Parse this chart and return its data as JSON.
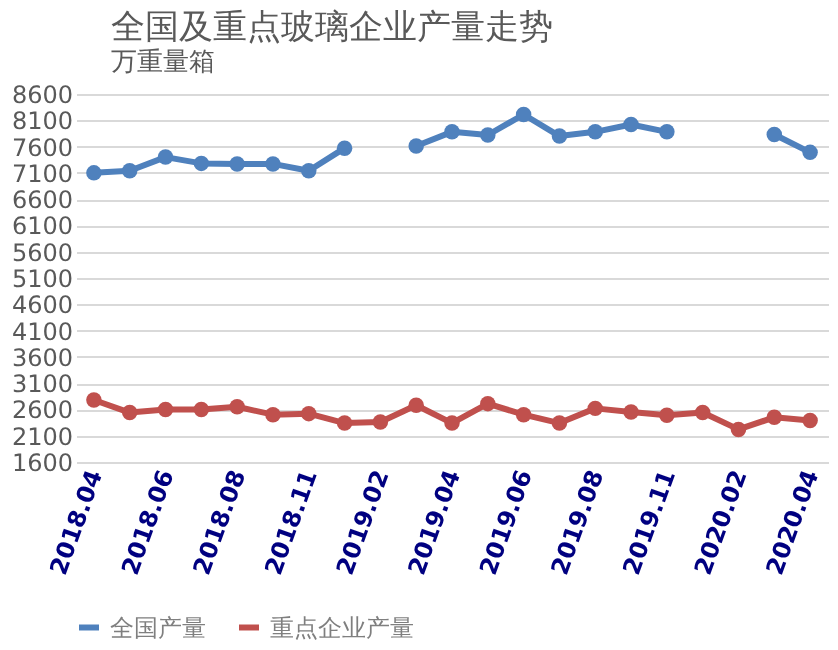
{
  "chart_data": {
    "type": "line",
    "title": "全国及重点玻璃企业产量走势",
    "ylabel": "万重量箱",
    "categories": [
      "2018.04",
      null,
      "2018.06",
      null,
      "2018.08",
      null,
      "2018.11",
      null,
      "2019.02",
      null,
      "2019.04",
      null,
      "2019.06",
      null,
      "2019.08",
      null,
      "2019.11",
      null,
      "2020.02",
      null,
      "2020.04"
    ],
    "series": [
      {
        "name": "全国产量",
        "color": "#4f81bd",
        "values": [
          7100,
          7140,
          7400,
          7280,
          7270,
          7270,
          7140,
          7570,
          null,
          7610,
          7880,
          7820,
          8210,
          7800,
          7880,
          8020,
          7880,
          null,
          null,
          7830,
          7490
        ]
      },
      {
        "name": "重点企业产量",
        "color": "#c0504d",
        "values": [
          2780,
          2540,
          2600,
          2600,
          2650,
          2500,
          2520,
          2340,
          2360,
          2680,
          2340,
          2710,
          2500,
          2340,
          2620,
          2550,
          2490,
          2540,
          2220,
          2450,
          2390
        ]
      }
    ],
    "ylim": [
      1600,
      8600
    ],
    "yticks": [
      1600,
      2100,
      2600,
      3100,
      3600,
      4100,
      4600,
      5100,
      5600,
      6100,
      6600,
      7100,
      7600,
      8100,
      8600
    ],
    "grid": "y",
    "legend": "bottom",
    "marker": "circle",
    "line_style": "solid"
  }
}
